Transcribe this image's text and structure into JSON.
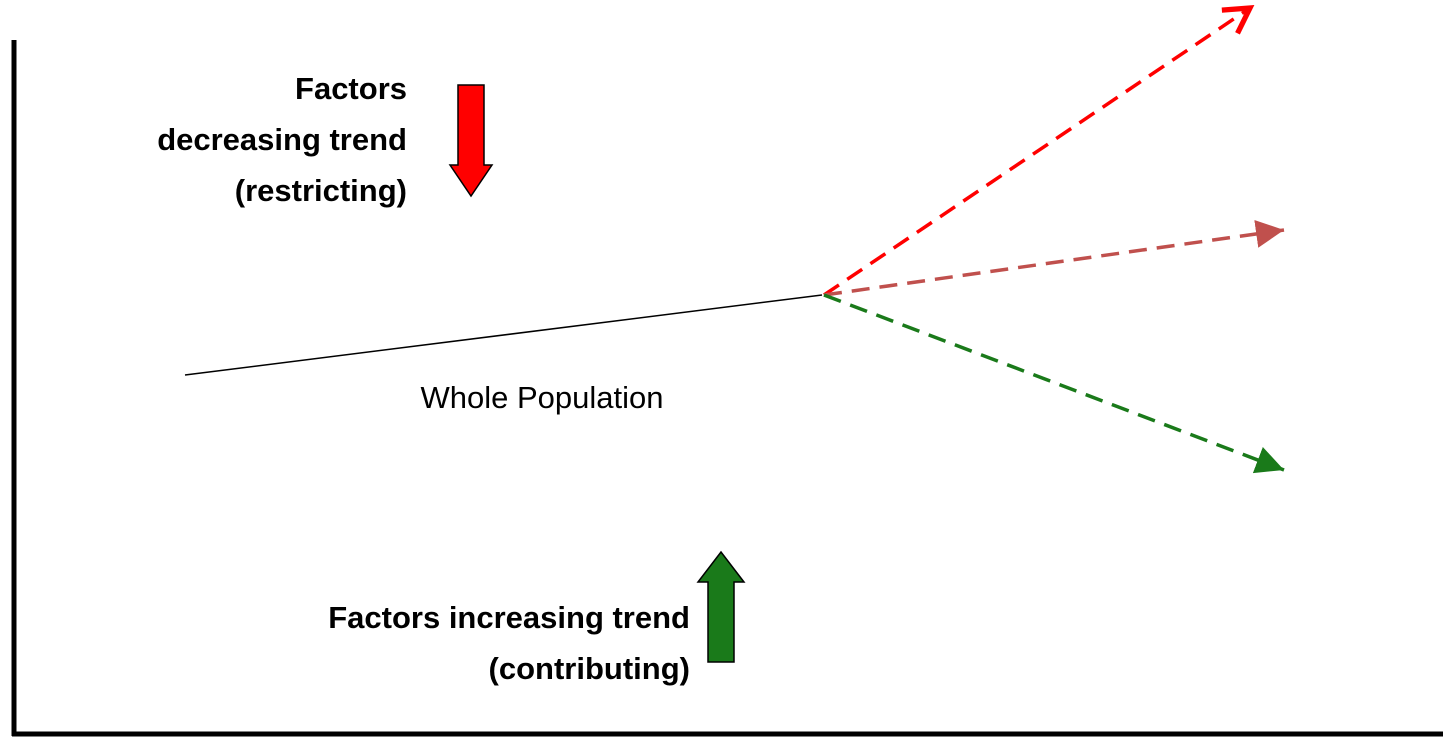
{
  "decreasing": {
    "lines": [
      "Factors",
      "decreasing trend",
      "(restricting)"
    ]
  },
  "whole_population": "Whole Population",
  "increasing": {
    "lines": [
      "Factors increasing trend",
      "(contributing)"
    ]
  }
}
